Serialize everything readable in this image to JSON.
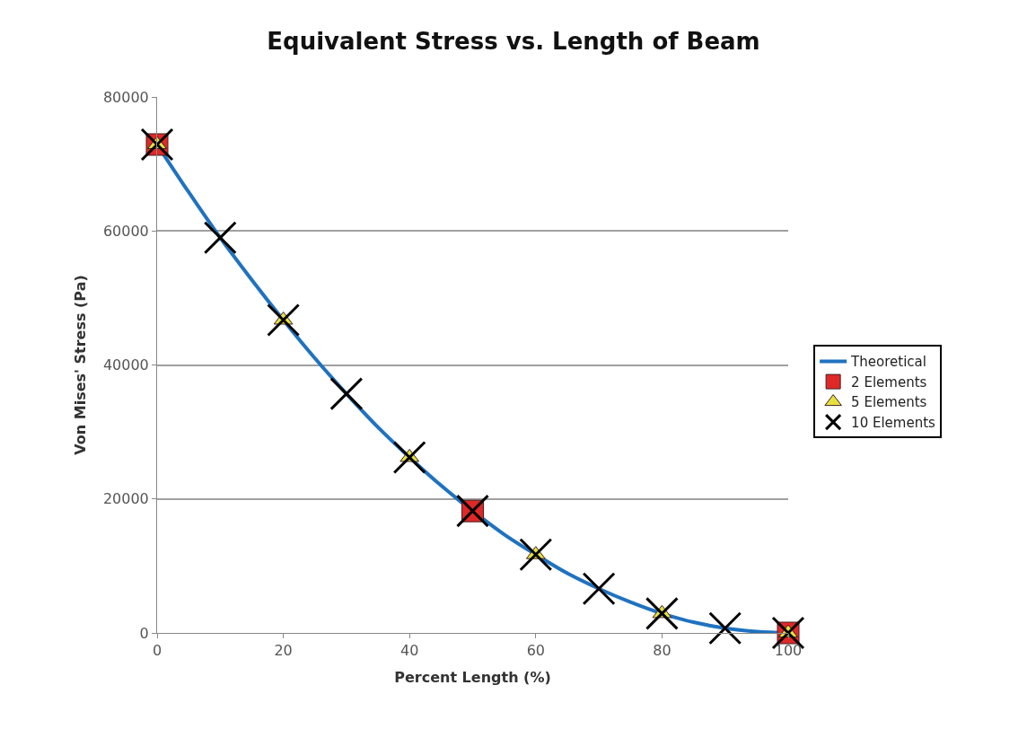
{
  "chart_data": {
    "type": "line",
    "title": "Equivalent Stress vs. Length of Beam",
    "xlabel": "Percent Length (%)",
    "ylabel": "Von Mises' Stress (Pa)",
    "xlim": [
      0,
      100
    ],
    "xticks": [
      0,
      20,
      40,
      60,
      80,
      100
    ],
    "ylim": [
      0,
      80000
    ],
    "yticks": [
      0,
      20000,
      40000,
      60000,
      80000
    ],
    "grid": "y",
    "legend": "right",
    "series": [
      {
        "name": "Theoretical",
        "color": "#1f72c0",
        "line_style": "solid",
        "x": [
          0,
          5,
          10,
          15,
          20,
          25,
          30,
          35,
          40,
          45,
          50,
          55,
          60,
          65,
          70,
          75,
          80,
          85,
          90,
          95,
          100
        ],
        "values": [
          72900,
          65800,
          59000,
          52700,
          46700,
          41000,
          35700,
          30700,
          26200,
          22000,
          18200,
          14700,
          11700,
          8900,
          6600,
          4600,
          2900,
          1600,
          700,
          200,
          0
        ]
      },
      {
        "name": "2 Elements",
        "type": "scatter",
        "color": "#e02828",
        "marker": "square",
        "x": [
          0,
          50,
          100
        ],
        "values": [
          72900,
          18200,
          0
        ]
      },
      {
        "name": "5 Elements",
        "type": "scatter",
        "color": "#e6e040",
        "marker": "triangle",
        "x": [
          0,
          20,
          40,
          60,
          80,
          100
        ],
        "values": [
          72900,
          46700,
          26200,
          11700,
          2900,
          0
        ]
      },
      {
        "name": "10 Elements",
        "type": "scatter",
        "color": "#000000",
        "marker": "cross",
        "x": [
          0,
          10,
          20,
          30,
          40,
          50,
          60,
          70,
          80,
          90,
          100
        ],
        "values": [
          72900,
          59000,
          46700,
          35700,
          26200,
          18200,
          11700,
          6600,
          2900,
          700,
          0
        ]
      }
    ]
  }
}
